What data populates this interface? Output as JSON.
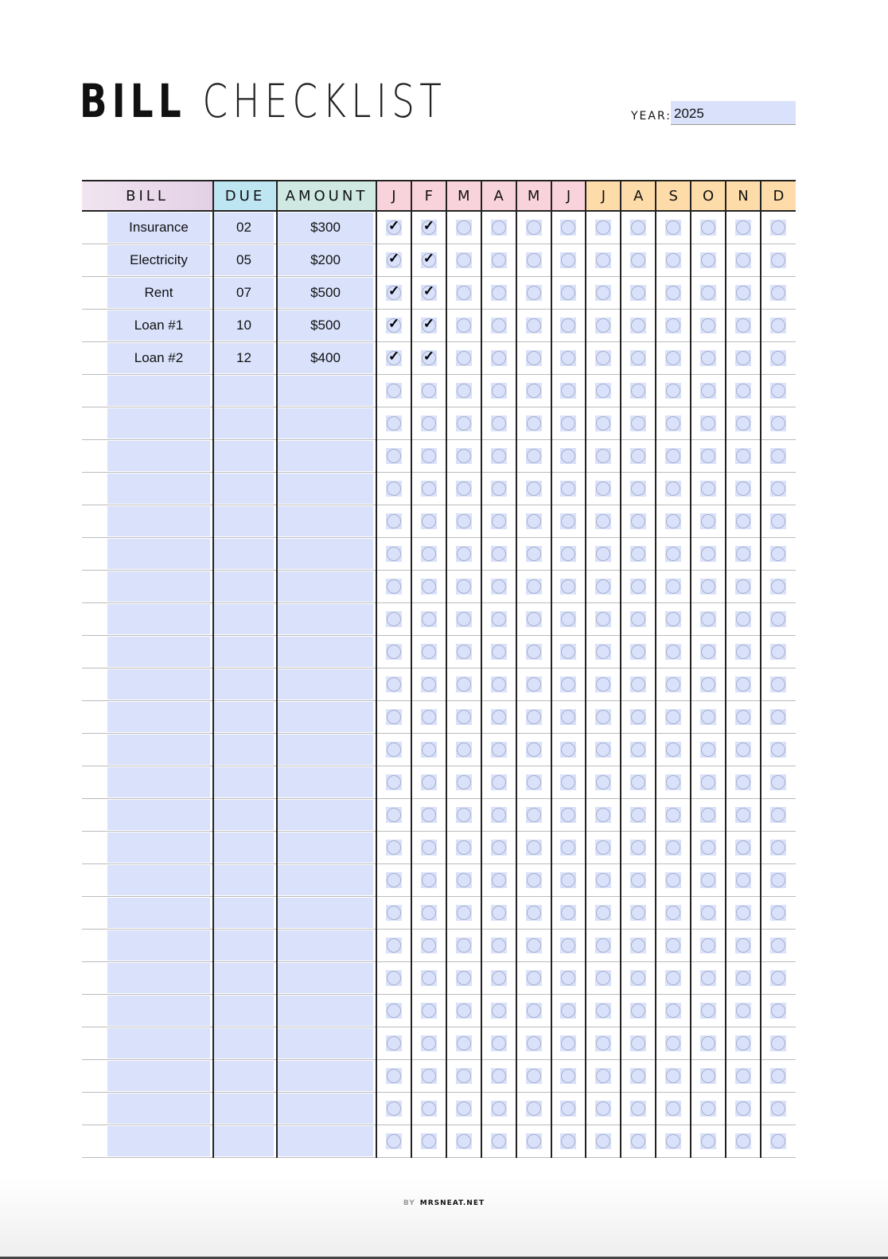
{
  "title": {
    "bold": "BILL",
    "light": "CHECKLIST"
  },
  "year": {
    "label": "YEAR:",
    "value": "2025"
  },
  "headers": {
    "bill": "BILL",
    "due": "DUE",
    "amount": "AMOUNT",
    "months": [
      "J",
      "F",
      "M",
      "A",
      "M",
      "J",
      "J",
      "A",
      "S",
      "O",
      "N",
      "D"
    ]
  },
  "colors": {
    "cell_fill": "#d9e1fb",
    "first_half_header": "#f9d3dc",
    "second_half_header": "#fddca9",
    "due_header": "#bee5f2",
    "amount_header": "#cfe9e2"
  },
  "rows": [
    {
      "bill": "Insurance",
      "due": "02",
      "amount": "$300",
      "paid": [
        true,
        true,
        false,
        false,
        false,
        false,
        false,
        false,
        false,
        false,
        false,
        false
      ]
    },
    {
      "bill": "Electricity",
      "due": "05",
      "amount": "$200",
      "paid": [
        true,
        true,
        false,
        false,
        false,
        false,
        false,
        false,
        false,
        false,
        false,
        false
      ]
    },
    {
      "bill": "Rent",
      "due": "07",
      "amount": "$500",
      "paid": [
        true,
        true,
        false,
        false,
        false,
        false,
        false,
        false,
        false,
        false,
        false,
        false
      ]
    },
    {
      "bill": "Loan #1",
      "due": "10",
      "amount": "$500",
      "paid": [
        true,
        true,
        false,
        false,
        false,
        false,
        false,
        false,
        false,
        false,
        false,
        false
      ]
    },
    {
      "bill": "Loan #2",
      "due": "12",
      "amount": "$400",
      "paid": [
        true,
        true,
        false,
        false,
        false,
        false,
        false,
        false,
        false,
        false,
        false,
        false
      ]
    },
    {
      "bill": "",
      "due": "",
      "amount": "",
      "paid": []
    },
    {
      "bill": "",
      "due": "",
      "amount": "",
      "paid": []
    },
    {
      "bill": "",
      "due": "",
      "amount": "",
      "paid": []
    },
    {
      "bill": "",
      "due": "",
      "amount": "",
      "paid": []
    },
    {
      "bill": "",
      "due": "",
      "amount": "",
      "paid": []
    },
    {
      "bill": "",
      "due": "",
      "amount": "",
      "paid": []
    },
    {
      "bill": "",
      "due": "",
      "amount": "",
      "paid": []
    },
    {
      "bill": "",
      "due": "",
      "amount": "",
      "paid": []
    },
    {
      "bill": "",
      "due": "",
      "amount": "",
      "paid": []
    },
    {
      "bill": "",
      "due": "",
      "amount": "",
      "paid": []
    },
    {
      "bill": "",
      "due": "",
      "amount": "",
      "paid": []
    },
    {
      "bill": "",
      "due": "",
      "amount": "",
      "paid": []
    },
    {
      "bill": "",
      "due": "",
      "amount": "",
      "paid": []
    },
    {
      "bill": "",
      "due": "",
      "amount": "",
      "paid": []
    },
    {
      "bill": "",
      "due": "",
      "amount": "",
      "paid": []
    },
    {
      "bill": "",
      "due": "",
      "amount": "",
      "paid": []
    },
    {
      "bill": "",
      "due": "",
      "amount": "",
      "paid": []
    },
    {
      "bill": "",
      "due": "",
      "amount": "",
      "paid": []
    },
    {
      "bill": "",
      "due": "",
      "amount": "",
      "paid": []
    },
    {
      "bill": "",
      "due": "",
      "amount": "",
      "paid": []
    },
    {
      "bill": "",
      "due": "",
      "amount": "",
      "paid": []
    },
    {
      "bill": "",
      "due": "",
      "amount": "",
      "paid": []
    },
    {
      "bill": "",
      "due": "",
      "amount": "",
      "paid": []
    },
    {
      "bill": "",
      "due": "",
      "amount": "",
      "paid": []
    }
  ],
  "footer": {
    "by": "BY",
    "site": "MRSNEAT.NET"
  }
}
